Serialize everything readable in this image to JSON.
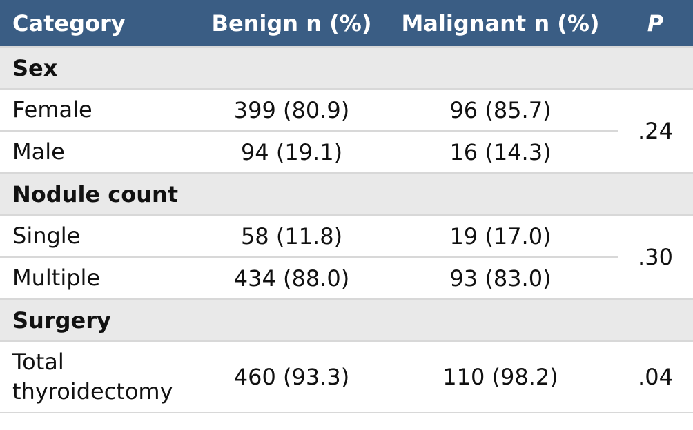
{
  "header": {
    "category": "Category",
    "benign": "Benign n (%)",
    "malignant": "Malignant n (%)",
    "p": "P"
  },
  "sections": {
    "sex": {
      "title": "Sex",
      "rows": [
        {
          "label": "Female",
          "benign": "399 (80.9)",
          "malignant": "96 (85.7)"
        },
        {
          "label": "Male",
          "benign": "94 (19.1)",
          "malignant": "16 (14.3)"
        }
      ],
      "p": ".24"
    },
    "nodule": {
      "title": "Nodule count",
      "rows": [
        {
          "label": "Single",
          "benign": "58 (11.8)",
          "malignant": "19 (17.0)"
        },
        {
          "label": "Multiple",
          "benign": "434 (88.0)",
          "malignant": "93 (83.0)"
        }
      ],
      "p": ".30"
    },
    "surgery": {
      "title": "Surgery",
      "rows": [
        {
          "label_line1": "Total",
          "label_line2": "thyroidectomy",
          "benign": "460 (93.3)",
          "malignant": "110 (98.2)"
        }
      ],
      "p": ".04"
    }
  },
  "colors": {
    "header_bg": "#3a5d84",
    "section_bg": "#e9e9e9"
  }
}
